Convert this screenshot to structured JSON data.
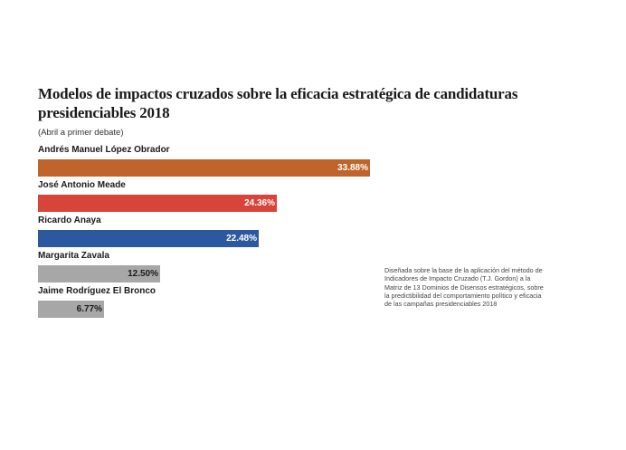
{
  "chart_data": {
    "type": "bar",
    "orientation": "horizontal",
    "title": "Modelos de impactos cruzados sobre la eficacia estratégica de candidaturas presidenciables 2018",
    "subtitle": "(Abril a primer debate)",
    "categories": [
      "Andrés Manuel López Obrador",
      "José Antonio Meade",
      "Ricardo Anaya",
      "Margarita Zavala",
      "Jaime Rodríguez El Bronco"
    ],
    "values": [
      33.88,
      24.36,
      22.48,
      12.5,
      6.77
    ],
    "value_labels": [
      "33.88%",
      "24.36%",
      "22.48%",
      "12.50%",
      "6.77%"
    ],
    "colors": [
      "#c0642b",
      "#d8443a",
      "#2c58a0",
      "#a7a7a7",
      "#a7a7a7"
    ],
    "value_label_dark": [
      false,
      false,
      false,
      true,
      true
    ],
    "grid": false,
    "legend": "none"
  },
  "note": "Diseñada sobre la base de la aplicación del método de Indicadores de Impacto Cruzado (T.J. Gordon) a la Matriz de 13 Dominios de Disensos estratégicos, sobre la predictibilidad del comportamiento político y eficacia de las campañas presidenciables 2018"
}
